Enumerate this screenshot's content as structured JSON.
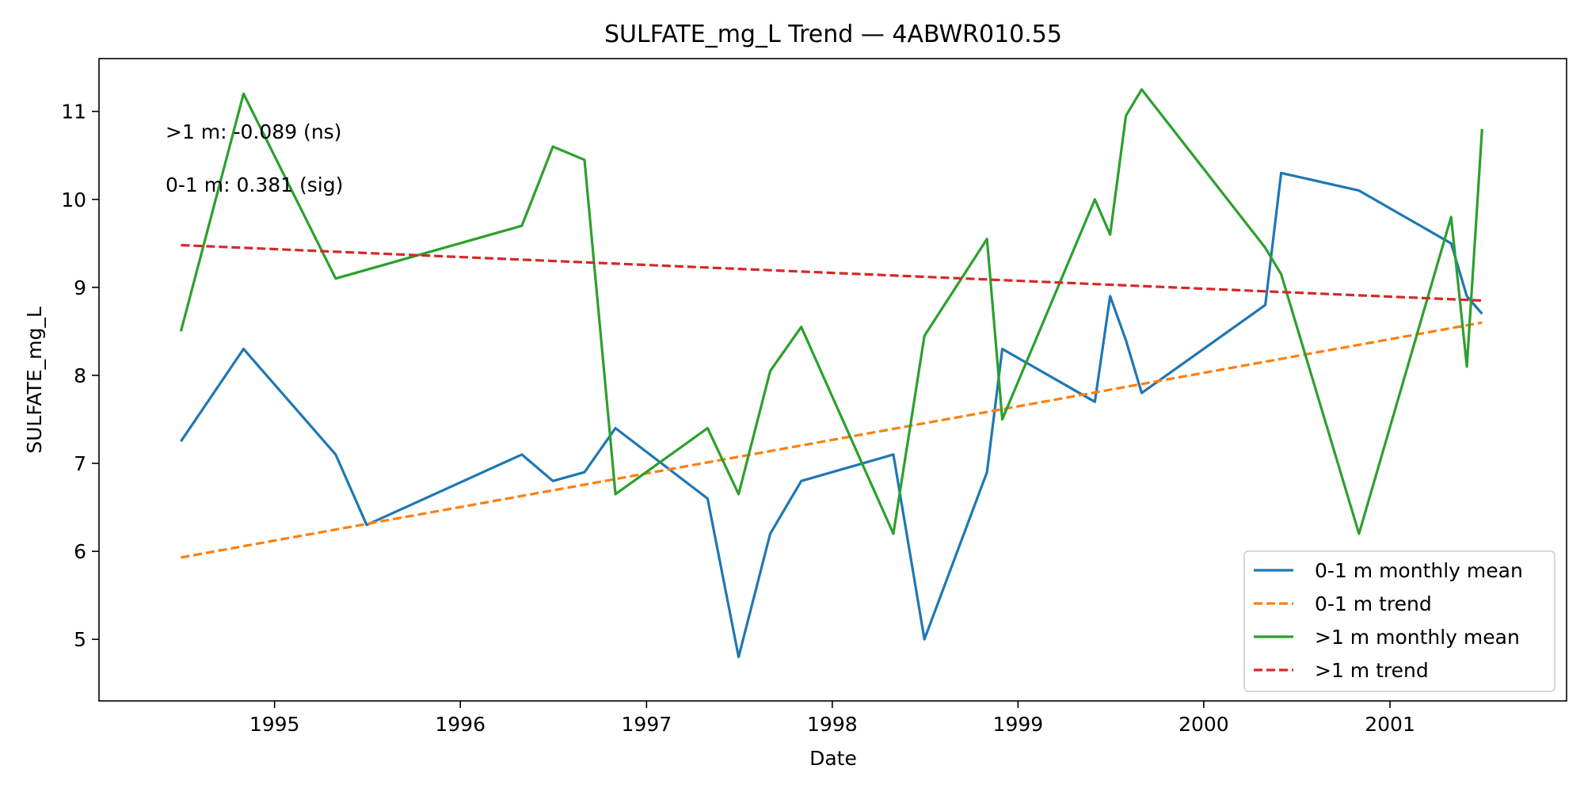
{
  "chart_data": {
    "type": "line",
    "title": "SULFATE_mg_L Trend — 4ABWR010.55",
    "xlabel": "Date",
    "ylabel": "SULFATE_mg_L",
    "x_ticks": [
      "1995",
      "1996",
      "1997",
      "1998",
      "1999",
      "2000",
      "2001"
    ],
    "y_ticks": [
      "5",
      "6",
      "7",
      "8",
      "9",
      "10",
      "11"
    ],
    "xlim": [
      "1994-01-21",
      "2001-12-14"
    ],
    "ylim": [
      4.3,
      11.6
    ],
    "grid": false,
    "legend_location": "lower-right",
    "annotations": [
      ">1 m: -0.089 (ns)",
      "0-1 m: 0.381 (sig)"
    ],
    "series": [
      {
        "name": "0-1 m monthly mean",
        "style": "solid",
        "color": "#1f77b4",
        "x": [
          "1994-07-01",
          "1994-11-01",
          "1995-05-01",
          "1995-07-01",
          "1996-05-01",
          "1996-07-01",
          "1996-09-01",
          "1996-11-01",
          "1997-05-01",
          "1997-07-01",
          "1997-09-01",
          "1997-11-01",
          "1998-05-01",
          "1998-07-01",
          "1998-11-01",
          "1998-12-01",
          "1999-06-01",
          "1999-07-01",
          "1999-08-01",
          "1999-09-01",
          "2000-05-01",
          "2000-06-01",
          "2000-11-01",
          "2001-05-01",
          "2001-06-01",
          "2001-07-01"
        ],
        "y": [
          7.25,
          8.3,
          7.1,
          6.3,
          7.1,
          6.8,
          6.9,
          7.4,
          6.6,
          4.8,
          6.2,
          6.8,
          7.1,
          5.0,
          6.9,
          8.3,
          7.7,
          8.9,
          8.4,
          7.8,
          8.8,
          10.3,
          10.1,
          9.5,
          8.9,
          8.7
        ]
      },
      {
        "name": "0-1 m trend",
        "style": "dashed",
        "color": "#ff7f0e",
        "x": [
          "1994-07-01",
          "2001-07-01"
        ],
        "y": [
          5.93,
          8.6
        ]
      },
      {
        "name": ">1 m monthly mean",
        "style": "solid",
        "color": "#2ca02c",
        "x": [
          "1994-07-01",
          "1994-11-01",
          "1995-05-01",
          "1996-05-01",
          "1996-07-01",
          "1996-09-01",
          "1996-11-01",
          "1997-05-01",
          "1997-07-01",
          "1997-09-01",
          "1997-11-01",
          "1998-05-01",
          "1998-07-01",
          "1998-11-01",
          "1998-12-01",
          "1999-06-01",
          "1999-07-01",
          "1999-08-01",
          "1999-09-01",
          "2000-05-01",
          "2000-06-01",
          "2000-11-01",
          "2001-05-01",
          "2001-06-01",
          "2001-07-01"
        ],
        "y": [
          8.5,
          11.2,
          9.1,
          9.7,
          10.6,
          10.45,
          6.65,
          7.4,
          6.65,
          8.05,
          8.55,
          6.2,
          8.45,
          9.55,
          7.5,
          10.0,
          9.6,
          10.95,
          11.25,
          9.45,
          9.15,
          6.2,
          9.8,
          8.1,
          10.8
        ]
      },
      {
        "name": ">1 m trend",
        "style": "dashed",
        "color": "#d62728",
        "x": [
          "1994-07-01",
          "2001-07-01"
        ],
        "y": [
          9.48,
          8.85
        ]
      }
    ]
  }
}
